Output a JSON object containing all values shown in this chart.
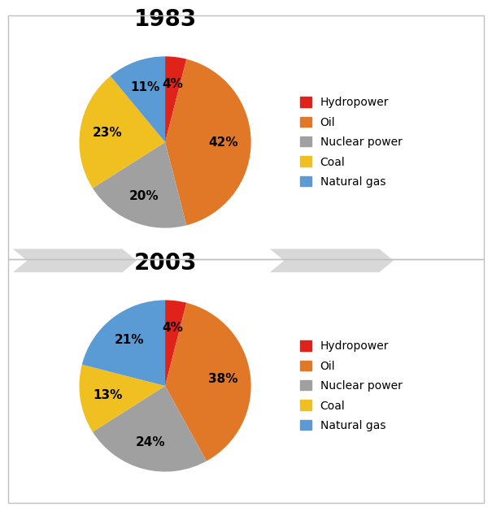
{
  "chart1": {
    "title": "1983",
    "labels": [
      "Hydropower",
      "Oil",
      "Nuclear power",
      "Coal",
      "Natural gas"
    ],
    "values": [
      4,
      42,
      20,
      23,
      11
    ],
    "colors": [
      "#e0231a",
      "#e07828",
      "#a0a0a0",
      "#f0c020",
      "#5b9bd5"
    ],
    "startangle": 90
  },
  "chart2": {
    "title": "2003",
    "labels": [
      "Hydropower",
      "Oil",
      "Nuclear power",
      "Coal",
      "Natural gas"
    ],
    "values": [
      4,
      38,
      24,
      13,
      21
    ],
    "colors": [
      "#e0231a",
      "#e07828",
      "#a0a0a0",
      "#f0c020",
      "#5b9bd5"
    ],
    "startangle": 90
  },
  "legend_labels": [
    "Hydropower",
    "Oil",
    "Nuclear power",
    "Coal",
    "Natural gas"
  ],
  "legend_colors": [
    "#e0231a",
    "#e07828",
    "#a0a0a0",
    "#f0c020",
    "#5b9bd5"
  ],
  "title_fontsize": 20,
  "label_fontsize": 11,
  "legend_fontsize": 10,
  "bg_color": "#ffffff",
  "divider_color": "#c8c8c8",
  "chevron_color": "#d8d8d8",
  "border_color": "#c0c0c0"
}
